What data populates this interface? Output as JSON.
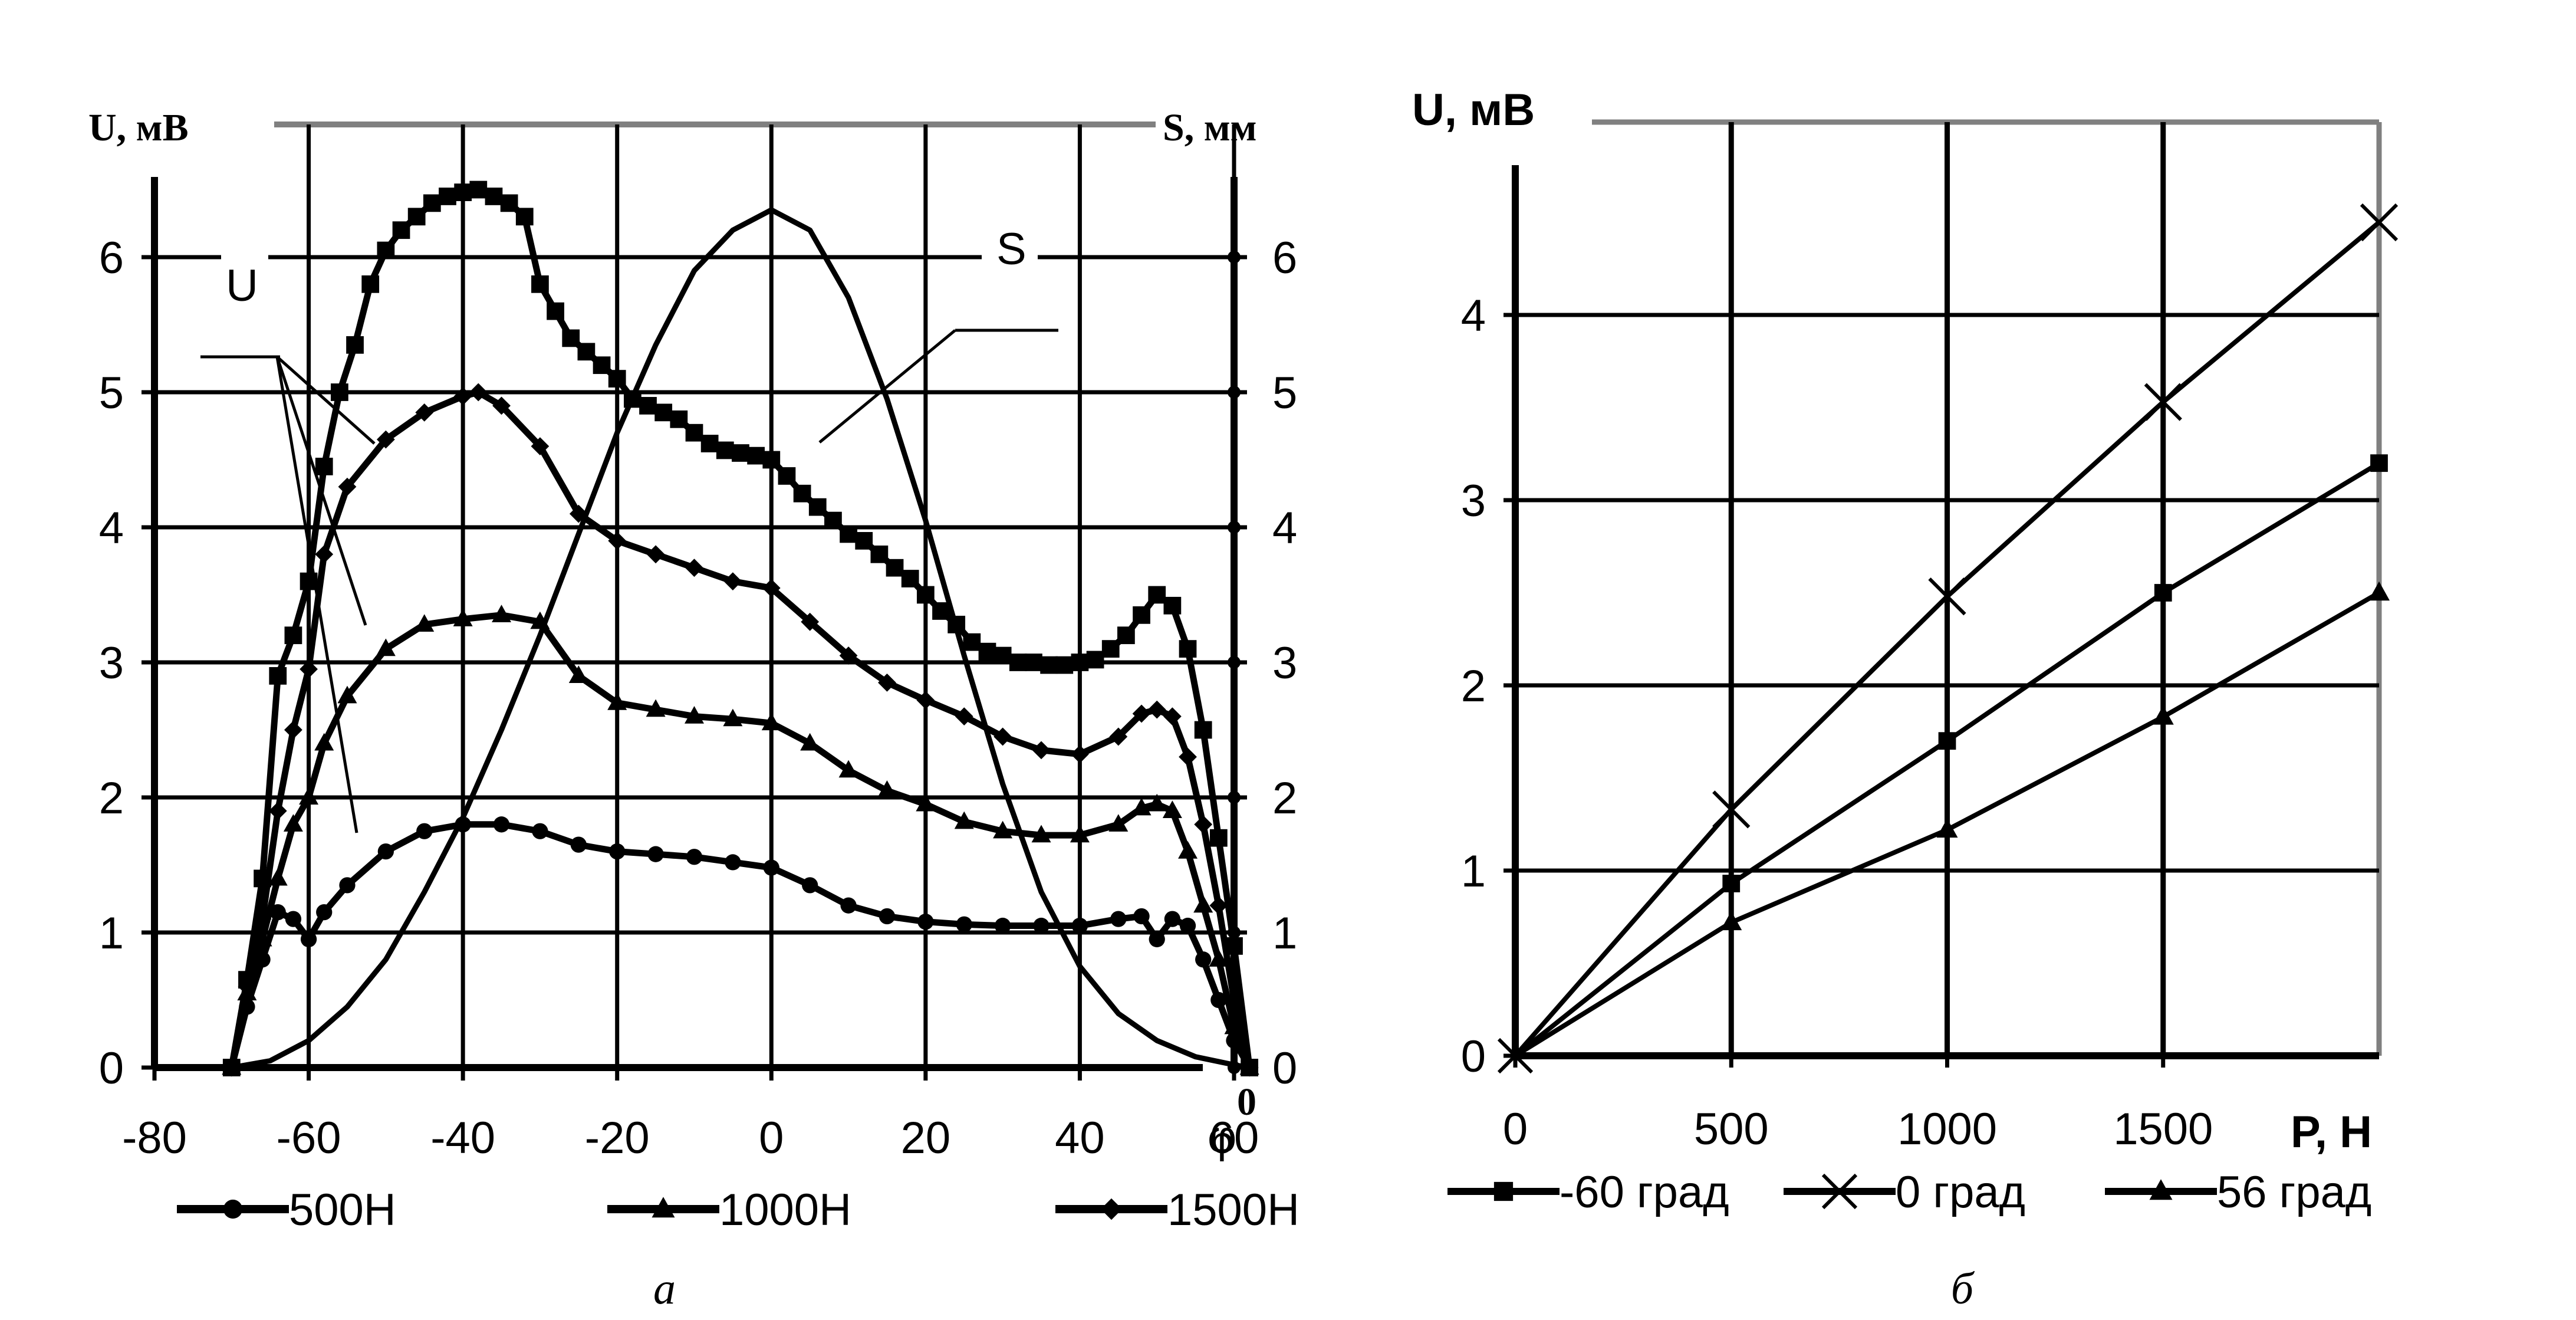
{
  "chart_data": [
    {
      "type": "line",
      "panel_caption": "а",
      "ylabel_left": "U, мВ",
      "ylabel_right": "S, мм",
      "xlabel": "φ",
      "xlabel_superscript": "0",
      "xlim": [
        -80,
        60
      ],
      "ylim": [
        0,
        6.5
      ],
      "x_ticks": [
        "-80",
        "-60",
        "-40",
        "-20",
        "0",
        "20",
        "40",
        "60"
      ],
      "y_ticks": [
        "0",
        "1",
        "2",
        "3",
        "4",
        "5",
        "6"
      ],
      "y_ticks_right": [
        "0",
        "1",
        "2",
        "3",
        "4",
        "5",
        "6"
      ],
      "annotations": {
        "U": "U",
        "S": "S"
      },
      "grid": true,
      "legend_position": "bottom",
      "series": [
        {
          "name": "500Н",
          "marker": "circle",
          "x": [
            -70,
            -68,
            -66,
            -64,
            -62,
            -60,
            -58,
            -55,
            -50,
            -45,
            -40,
            -35,
            -30,
            -25,
            -20,
            -15,
            -10,
            -5,
            0,
            5,
            10,
            15,
            20,
            25,
            30,
            35,
            40,
            45,
            48,
            50,
            52,
            54,
            56,
            58,
            60,
            62
          ],
          "y": [
            0,
            0.45,
            0.8,
            1.15,
            1.1,
            0.95,
            1.15,
            1.35,
            1.6,
            1.75,
            1.8,
            1.8,
            1.75,
            1.65,
            1.6,
            1.58,
            1.56,
            1.52,
            1.48,
            1.35,
            1.2,
            1.12,
            1.08,
            1.06,
            1.05,
            1.05,
            1.05,
            1.1,
            1.12,
            0.95,
            1.1,
            1.05,
            0.8,
            0.5,
            0.2,
            0
          ]
        },
        {
          "name": "1000Н",
          "marker": "triangle",
          "x": [
            -70,
            -68,
            -66,
            -64,
            -62,
            -60,
            -58,
            -55,
            -50,
            -45,
            -40,
            -35,
            -30,
            -25,
            -20,
            -15,
            -10,
            -5,
            0,
            5,
            10,
            15,
            20,
            25,
            30,
            35,
            40,
            45,
            48,
            50,
            52,
            54,
            56,
            58,
            60,
            62
          ],
          "y": [
            0,
            0.55,
            0.95,
            1.4,
            1.8,
            2.0,
            2.4,
            2.75,
            3.1,
            3.28,
            3.32,
            3.35,
            3.3,
            2.9,
            2.7,
            2.65,
            2.6,
            2.58,
            2.55,
            2.4,
            2.2,
            2.05,
            1.95,
            1.82,
            1.75,
            1.72,
            1.72,
            1.8,
            1.92,
            1.95,
            1.9,
            1.6,
            1.2,
            0.8,
            0.3,
            0
          ]
        },
        {
          "name": "1500Н",
          "marker": "diamond",
          "x": [
            -70,
            -68,
            -66,
            -64,
            -62,
            -60,
            -58,
            -55,
            -50,
            -45,
            -40,
            -38,
            -35,
            -30,
            -25,
            -20,
            -15,
            -10,
            -5,
            0,
            5,
            10,
            15,
            20,
            25,
            30,
            35,
            40,
            45,
            48,
            50,
            52,
            54,
            56,
            58,
            60,
            62
          ],
          "y": [
            0,
            0.6,
            1.1,
            1.9,
            2.5,
            2.95,
            3.8,
            4.3,
            4.65,
            4.85,
            4.97,
            5.0,
            4.9,
            4.6,
            4.1,
            3.9,
            3.8,
            3.7,
            3.6,
            3.55,
            3.3,
            3.05,
            2.85,
            2.72,
            2.6,
            2.45,
            2.35,
            2.32,
            2.45,
            2.62,
            2.65,
            2.6,
            2.3,
            1.8,
            1.2,
            0.5,
            0
          ]
        },
        {
          "name": "",
          "marker": "square",
          "x": [
            -70,
            -68,
            -66,
            -64,
            -62,
            -60,
            -58,
            -56,
            -54,
            -52,
            -50,
            -48,
            -46,
            -44,
            -42,
            -40,
            -38,
            -36,
            -34,
            -32,
            -30,
            -28,
            -26,
            -24,
            -22,
            -20,
            -18,
            -16,
            -14,
            -12,
            -10,
            -8,
            -6,
            -4,
            -2,
            0,
            2,
            4,
            6,
            8,
            10,
            12,
            14,
            16,
            18,
            20,
            22,
            24,
            26,
            28,
            30,
            32,
            34,
            36,
            38,
            40,
            42,
            44,
            46,
            48,
            50,
            52,
            54,
            56,
            58,
            60,
            62
          ],
          "y": [
            0,
            0.65,
            1.4,
            2.9,
            3.2,
            3.6,
            4.45,
            5.0,
            5.35,
            5.8,
            6.05,
            6.2,
            6.3,
            6.4,
            6.45,
            6.48,
            6.5,
            6.45,
            6.4,
            6.3,
            5.8,
            5.6,
            5.4,
            5.3,
            5.2,
            5.1,
            4.95,
            4.9,
            4.85,
            4.8,
            4.7,
            4.62,
            4.57,
            4.55,
            4.53,
            4.5,
            4.38,
            4.25,
            4.15,
            4.05,
            3.95,
            3.9,
            3.8,
            3.7,
            3.62,
            3.5,
            3.38,
            3.28,
            3.15,
            3.08,
            3.05,
            3.0,
            3.0,
            2.98,
            2.98,
            3.0,
            3.02,
            3.1,
            3.2,
            3.35,
            3.5,
            3.42,
            3.1,
            2.5,
            1.7,
            0.9,
            0
          ]
        },
        {
          "name": "S",
          "marker": "none",
          "x": [
            -70,
            -65,
            -60,
            -55,
            -50,
            -45,
            -40,
            -35,
            -30,
            -25,
            -20,
            -15,
            -10,
            -5,
            0,
            5,
            10,
            15,
            20,
            25,
            30,
            35,
            40,
            45,
            50,
            55,
            60,
            62
          ],
          "y": [
            0,
            0.05,
            0.2,
            0.45,
            0.8,
            1.3,
            1.85,
            2.5,
            3.2,
            3.95,
            4.7,
            5.35,
            5.9,
            6.2,
            6.35,
            6.2,
            5.7,
            4.95,
            4.05,
            3.05,
            2.1,
            1.3,
            0.75,
            0.4,
            0.2,
            0.08,
            0.02,
            0
          ]
        }
      ]
    },
    {
      "type": "line",
      "panel_caption": "б",
      "ylabel": "U, мВ",
      "xlabel": "P, Н",
      "xlim": [
        0,
        2000
      ],
      "ylim": [
        0,
        5
      ],
      "x_ticks": [
        "0",
        "500",
        "1000",
        "1500"
      ],
      "y_ticks": [
        "0",
        "1",
        "2",
        "3",
        "4"
      ],
      "grid": true,
      "legend_position": "bottom",
      "series": [
        {
          "name": "-60 град",
          "marker": "square",
          "x": [
            0,
            500,
            1000,
            1500,
            2000
          ],
          "y": [
            0,
            0.93,
            1.7,
            2.5,
            3.2
          ]
        },
        {
          "name": "0 град",
          "marker": "x",
          "x": [
            0,
            500,
            1000,
            1500,
            2000
          ],
          "y": [
            0,
            1.33,
            2.48,
            3.53,
            4.5
          ]
        },
        {
          "name": "56 град",
          "marker": "triangle",
          "x": [
            0,
            500,
            1000,
            1500,
            2000
          ],
          "y": [
            0,
            0.72,
            1.22,
            1.83,
            2.5
          ]
        }
      ]
    }
  ]
}
